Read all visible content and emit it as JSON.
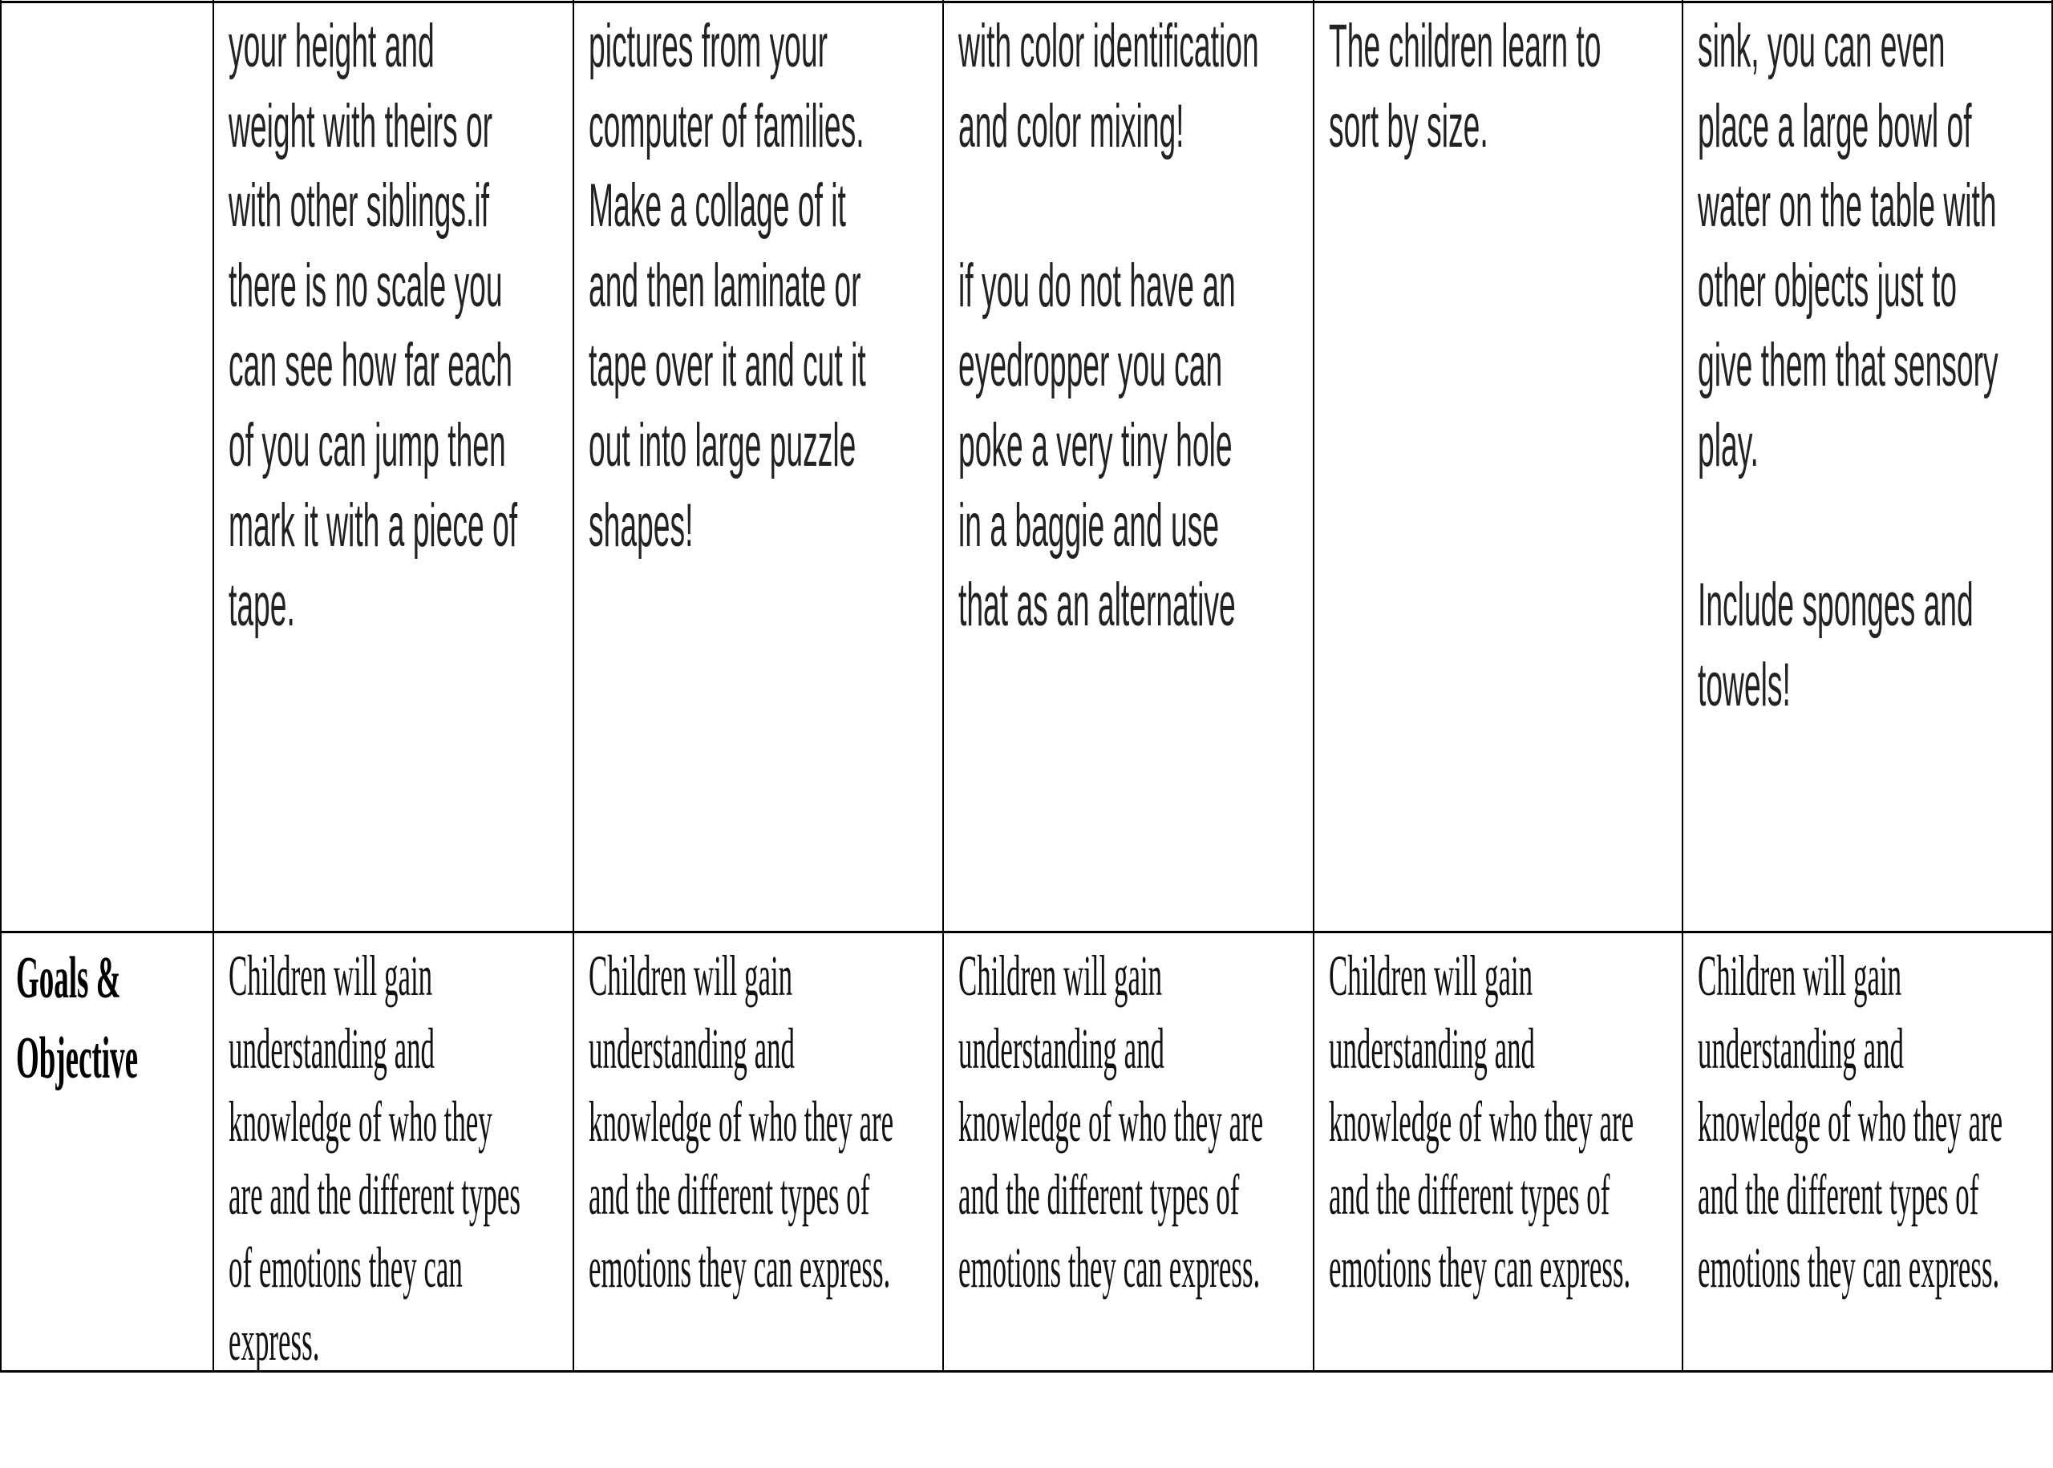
{
  "table": {
    "activity_row": {
      "label": "",
      "cells": [
        "your height and\nweight with theirs or\nwith other siblings.if\nthere is no scale you\ncan see how far each\nof you can jump then\nmark it with a piece of\ntape.",
        "pictures from your\ncomputer of families.\nMake a collage of it\nand then laminate or\ntape over it and cut it\nout into large puzzle\nshapes!",
        "with color identification\nand color mixing!\n\nif you do not have an\neyedropper you can\npoke a very tiny hole\nin a baggie and use\nthat as an alternative",
        "The children learn to\nsort by size.",
        "sink, you can even\nplace a large bowl of\nwater on the table with\nother objects just to\ngive them that sensory\nplay.\n\nInclude sponges and\ntowels!"
      ]
    },
    "goals_row": {
      "label": "Goals &\nObjective",
      "cells": [
        "Children will gain\nunderstanding and\nknowledge of who they\nare and the different types\nof emotions they can\nexpress.",
        "Children will gain\nunderstanding and\nknowledge of who they are\nand the different types of\nemotions they can express.",
        "Children will gain\nunderstanding and\nknowledge of who they are\nand the different types of\nemotions they can express.",
        "Children will gain\nunderstanding and\nknowledge of who they are\nand the different types of\nemotions they can express.",
        "Children will gain\nunderstanding and\nknowledge of who they are\nand the different types of\nemotions they can express."
      ]
    }
  }
}
